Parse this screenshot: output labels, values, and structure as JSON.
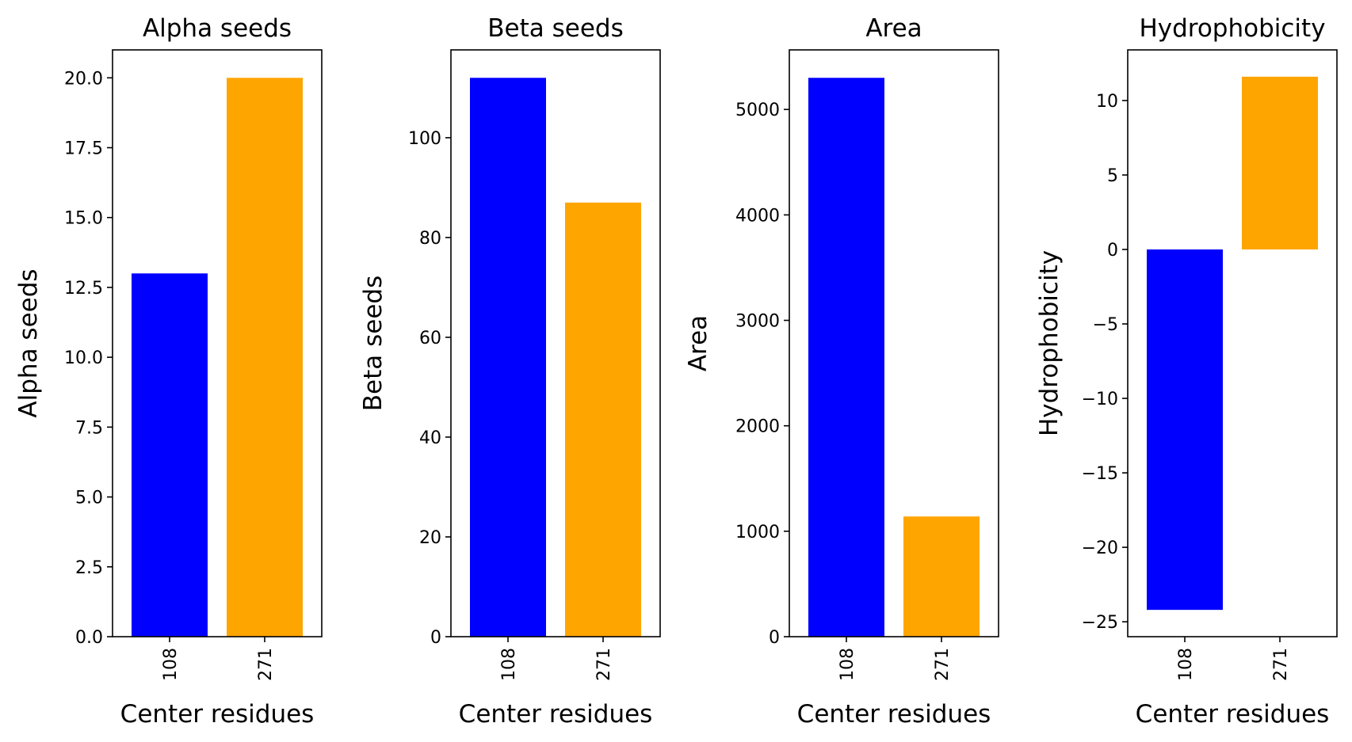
{
  "chart_data": [
    {
      "type": "bar",
      "title": "Alpha seeds",
      "xlabel": "Center residues",
      "ylabel": "Alpha seeds",
      "categories": [
        "108",
        "271"
      ],
      "values": [
        13,
        20
      ],
      "colors": [
        "#0000ff",
        "#ffa500"
      ],
      "ylim": [
        0,
        21
      ],
      "yticks": [
        0.0,
        2.5,
        5.0,
        7.5,
        10.0,
        12.5,
        15.0,
        17.5,
        20.0
      ],
      "ytick_labels": [
        "0.0",
        "2.5",
        "5.0",
        "7.5",
        "10.0",
        "12.5",
        "15.0",
        "17.5",
        "20.0"
      ],
      "grid": false
    },
    {
      "type": "bar",
      "title": "Beta seeds",
      "xlabel": "Center residues",
      "ylabel": "Beta seeds",
      "categories": [
        "108",
        "271"
      ],
      "values": [
        112,
        87
      ],
      "colors": [
        "#0000ff",
        "#ffa500"
      ],
      "ylim": [
        0,
        117.6
      ],
      "yticks": [
        0,
        20,
        40,
        60,
        80,
        100
      ],
      "ytick_labels": [
        "0",
        "20",
        "40",
        "60",
        "80",
        "100"
      ],
      "grid": false
    },
    {
      "type": "bar",
      "title": "Area",
      "xlabel": "Center residues",
      "ylabel": "Area",
      "categories": [
        "108",
        "271"
      ],
      "values": [
        5300,
        1140
      ],
      "colors": [
        "#0000ff",
        "#ffa500"
      ],
      "ylim": [
        0,
        5565
      ],
      "yticks": [
        0,
        1000,
        2000,
        3000,
        4000,
        5000
      ],
      "ytick_labels": [
        "0",
        "1000",
        "2000",
        "3000",
        "4000",
        "5000"
      ],
      "grid": false
    },
    {
      "type": "bar",
      "title": "Hydrophobicity",
      "xlabel": "Center residues",
      "ylabel": "Hydrophobicity",
      "categories": [
        "108",
        "271"
      ],
      "values": [
        -24.2,
        11.6
      ],
      "colors": [
        "#0000ff",
        "#ffa500"
      ],
      "ylim": [
        -26.0,
        13.4
      ],
      "yticks": [
        -25,
        -20,
        -15,
        -10,
        -5,
        0,
        5,
        10
      ],
      "ytick_labels": [
        "−25",
        "−20",
        "−15",
        "−10",
        "−5",
        "0",
        "5",
        "10"
      ],
      "grid": false
    }
  ]
}
